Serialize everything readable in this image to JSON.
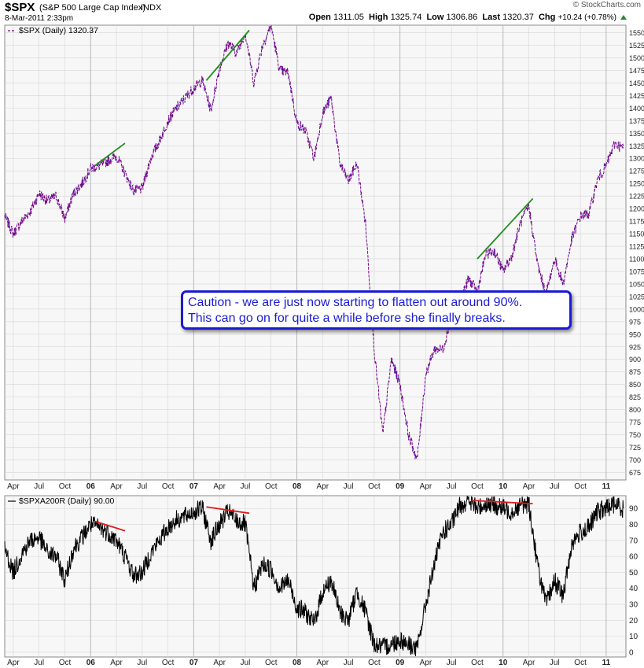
{
  "header": {
    "symbol": "$SPX",
    "name": "(S&P 500 Large Cap Index)",
    "exchange": "INDX",
    "timestamp": "8-Mar-2011 2:33pm",
    "brand": "© StockCharts.com",
    "open_label": "Open",
    "open_value": "1311.05",
    "high_label": "High",
    "high_value": "1325.74",
    "low_label": "Low",
    "low_value": "1306.86",
    "last_label": "Last",
    "last_value": "1320.37",
    "chg_label": "Chg",
    "chg_value": "+10.24 (+0.78%)"
  },
  "annotation": {
    "line1": "Caution - we are just now starting to flatten out around 90%.",
    "line2": "This can go on for quite a while before she finally breaks."
  },
  "colors": {
    "price": "#800080",
    "price_accent": "#1f1fbf",
    "breadth": "#000000",
    "trend_green": "#1f8f1f",
    "trend_red": "#e01b1b",
    "grid": "#d6d6d6",
    "callout": "#1b1bd6"
  },
  "chart_data": [
    {
      "type": "line",
      "title": "$SPX (Daily) 1320.37",
      "legend": "$SPX (Daily) 1320.37",
      "legend_position": "top-left",
      "grid": true,
      "ylim": [
        660,
        1565
      ],
      "yticks": [
        675,
        700,
        725,
        750,
        775,
        800,
        825,
        850,
        875,
        900,
        925,
        950,
        975,
        1000,
        1025,
        1050,
        1075,
        1100,
        1125,
        1150,
        1175,
        1200,
        1225,
        1250,
        1275,
        1300,
        1325,
        1350,
        1375,
        1400,
        1425,
        1450,
        1475,
        1500,
        1525,
        1550
      ],
      "x_tick_labels": [
        "Apr",
        "Jul",
        "Oct",
        "06",
        "Apr",
        "Jul",
        "Oct",
        "07",
        "Apr",
        "Jul",
        "Oct",
        "08",
        "Apr",
        "Jul",
        "Oct",
        "09",
        "Apr",
        "Jul",
        "Oct",
        "10",
        "Apr",
        "Jul",
        "Oct",
        "11"
      ],
      "x_tick_dates": [
        "2005-04",
        "2005-07",
        "2005-10",
        "2006-01",
        "2006-04",
        "2006-07",
        "2006-10",
        "2007-01",
        "2007-04",
        "2007-07",
        "2007-10",
        "2008-01",
        "2008-04",
        "2008-07",
        "2008-10",
        "2009-01",
        "2009-04",
        "2009-07",
        "2009-10",
        "2010-01",
        "2010-04",
        "2010-07",
        "2010-10",
        "2011-01"
      ],
      "series": [
        {
          "name": "$SPX",
          "points": [
            [
              "2005-03",
              1185
            ],
            [
              "2005-04",
              1150
            ],
            [
              "2005-05",
              1175
            ],
            [
              "2005-06",
              1195
            ],
            [
              "2005-07",
              1230
            ],
            [
              "2005-08",
              1215
            ],
            [
              "2005-09",
              1225
            ],
            [
              "2005-10",
              1180
            ],
            [
              "2005-11",
              1230
            ],
            [
              "2005-12",
              1250
            ],
            [
              "2006-01",
              1280
            ],
            [
              "2006-02",
              1285
            ],
            [
              "2006-03",
              1295
            ],
            [
              "2006-04",
              1305
            ],
            [
              "2006-05",
              1270
            ],
            [
              "2006-06",
              1235
            ],
            [
              "2006-07",
              1240
            ],
            [
              "2006-08",
              1300
            ],
            [
              "2006-09",
              1335
            ],
            [
              "2006-10",
              1375
            ],
            [
              "2006-11",
              1400
            ],
            [
              "2006-12",
              1420
            ],
            [
              "2007-01",
              1440
            ],
            [
              "2007-02",
              1455
            ],
            [
              "2007-03",
              1395
            ],
            [
              "2007-04",
              1480
            ],
            [
              "2007-05",
              1530
            ],
            [
              "2007-06",
              1510
            ],
            [
              "2007-07",
              1550
            ],
            [
              "2007-08",
              1450
            ],
            [
              "2007-09",
              1525
            ],
            [
              "2007-10",
              1565
            ],
            [
              "2007-11",
              1475
            ],
            [
              "2007-12",
              1470
            ],
            [
              "2008-01",
              1370
            ],
            [
              "2008-02",
              1355
            ],
            [
              "2008-03",
              1300
            ],
            [
              "2008-04",
              1390
            ],
            [
              "2008-05",
              1420
            ],
            [
              "2008-06",
              1290
            ],
            [
              "2008-07",
              1255
            ],
            [
              "2008-08",
              1290
            ],
            [
              "2008-09",
              1170
            ],
            [
              "2008-10",
              920
            ],
            [
              "2008-11",
              750
            ],
            [
              "2008-12",
              900
            ],
            [
              "2009-01",
              850
            ],
            [
              "2009-02",
              750
            ],
            [
              "2009-03",
              700
            ],
            [
              "2009-04",
              870
            ],
            [
              "2009-05",
              920
            ],
            [
              "2009-06",
              920
            ],
            [
              "2009-07",
              985
            ],
            [
              "2009-08",
              1020
            ],
            [
              "2009-09",
              1060
            ],
            [
              "2009-10",
              1035
            ],
            [
              "2009-11",
              1110
            ],
            [
              "2009-12",
              1115
            ],
            [
              "2010-01",
              1075
            ],
            [
              "2010-02",
              1105
            ],
            [
              "2010-03",
              1170
            ],
            [
              "2010-04",
              1205
            ],
            [
              "2010-05",
              1090
            ],
            [
              "2010-06",
              1030
            ],
            [
              "2010-07",
              1100
            ],
            [
              "2010-08",
              1050
            ],
            [
              "2010-09",
              1140
            ],
            [
              "2010-10",
              1185
            ],
            [
              "2010-11",
              1190
            ],
            [
              "2010-12",
              1258
            ],
            [
              "2011-01",
              1285
            ],
            [
              "2011-02",
              1330
            ],
            [
              "2011-03",
              1320
            ]
          ]
        }
      ],
      "trendlines": [
        {
          "color": "green",
          "from": [
            "2006-01-15",
            1285
          ],
          "to": [
            "2006-05-01",
            1330
          ]
        },
        {
          "color": "green",
          "from": [
            "2007-02-15",
            1455
          ],
          "to": [
            "2007-07-15",
            1555
          ]
        },
        {
          "color": "green",
          "from": [
            "2009-10-01",
            1100
          ],
          "to": [
            "2010-04-15",
            1220
          ]
        }
      ]
    },
    {
      "type": "line",
      "title": "$SPXA200R (Daily) 90.00",
      "legend": "$SPXA200R (Daily) 90.00",
      "legend_position": "top-left",
      "grid": true,
      "ylim": [
        -3,
        98
      ],
      "yticks": [
        0,
        10,
        20,
        30,
        40,
        50,
        60,
        70,
        80,
        90
      ],
      "x_tick_labels": [
        "Apr",
        "Jul",
        "Oct",
        "06",
        "Apr",
        "Jul",
        "Oct",
        "07",
        "Apr",
        "Jul",
        "Oct",
        "08",
        "Apr",
        "Jul",
        "Oct",
        "09",
        "Apr",
        "Jul",
        "Oct",
        "10",
        "Apr",
        "Jul",
        "Oct",
        "11"
      ],
      "series": [
        {
          "name": "$SPXA200R",
          "points": [
            [
              "2005-03",
              65
            ],
            [
              "2005-04",
              50
            ],
            [
              "2005-05",
              62
            ],
            [
              "2005-06",
              70
            ],
            [
              "2005-07",
              72
            ],
            [
              "2005-08",
              62
            ],
            [
              "2005-09",
              60
            ],
            [
              "2005-10",
              45
            ],
            [
              "2005-11",
              65
            ],
            [
              "2005-12",
              72
            ],
            [
              "2006-01",
              80
            ],
            [
              "2006-02",
              78
            ],
            [
              "2006-03",
              75
            ],
            [
              "2006-04",
              70
            ],
            [
              "2006-05",
              60
            ],
            [
              "2006-06",
              48
            ],
            [
              "2006-07",
              50
            ],
            [
              "2006-08",
              62
            ],
            [
              "2006-09",
              70
            ],
            [
              "2006-10",
              78
            ],
            [
              "2006-11",
              83
            ],
            [
              "2006-12",
              85
            ],
            [
              "2007-01",
              88
            ],
            [
              "2007-02",
              90
            ],
            [
              "2007-03",
              70
            ],
            [
              "2007-04",
              80
            ],
            [
              "2007-05",
              88
            ],
            [
              "2007-06",
              82
            ],
            [
              "2007-07",
              80
            ],
            [
              "2007-08",
              40
            ],
            [
              "2007-09",
              55
            ],
            [
              "2007-10",
              52
            ],
            [
              "2007-11",
              40
            ],
            [
              "2007-12",
              45
            ],
            [
              "2008-01",
              28
            ],
            [
              "2008-02",
              25
            ],
            [
              "2008-03",
              18
            ],
            [
              "2008-04",
              38
            ],
            [
              "2008-05",
              45
            ],
            [
              "2008-06",
              25
            ],
            [
              "2008-07",
              20
            ],
            [
              "2008-08",
              38
            ],
            [
              "2008-09",
              25
            ],
            [
              "2008-10",
              5
            ],
            [
              "2008-11",
              3
            ],
            [
              "2008-12",
              5
            ],
            [
              "2009-01",
              8
            ],
            [
              "2009-02",
              5
            ],
            [
              "2009-03",
              2
            ],
            [
              "2009-04",
              30
            ],
            [
              "2009-05",
              55
            ],
            [
              "2009-06",
              75
            ],
            [
              "2009-07",
              80
            ],
            [
              "2009-08",
              92
            ],
            [
              "2009-09",
              95
            ],
            [
              "2009-10",
              90
            ],
            [
              "2009-11",
              93
            ],
            [
              "2009-12",
              92
            ],
            [
              "2010-01",
              90
            ],
            [
              "2010-02",
              88
            ],
            [
              "2010-03",
              92
            ],
            [
              "2010-04",
              93
            ],
            [
              "2010-05",
              55
            ],
            [
              "2010-06",
              30
            ],
            [
              "2010-07",
              45
            ],
            [
              "2010-08",
              35
            ],
            [
              "2010-09",
              68
            ],
            [
              "2010-10",
              75
            ],
            [
              "2010-11",
              78
            ],
            [
              "2010-12",
              88
            ],
            [
              "2011-01",
              90
            ],
            [
              "2011-02",
              93
            ],
            [
              "2011-03",
              90
            ]
          ]
        }
      ],
      "trendlines": [
        {
          "color": "red",
          "from": [
            "2006-01-15",
            82
          ],
          "to": [
            "2006-05-01",
            76
          ]
        },
        {
          "color": "red",
          "from": [
            "2007-02-15",
            91
          ],
          "to": [
            "2007-07-15",
            87
          ]
        },
        {
          "color": "red",
          "from": [
            "2009-09-15",
            95
          ],
          "to": [
            "2010-04-15",
            93
          ]
        }
      ]
    }
  ]
}
